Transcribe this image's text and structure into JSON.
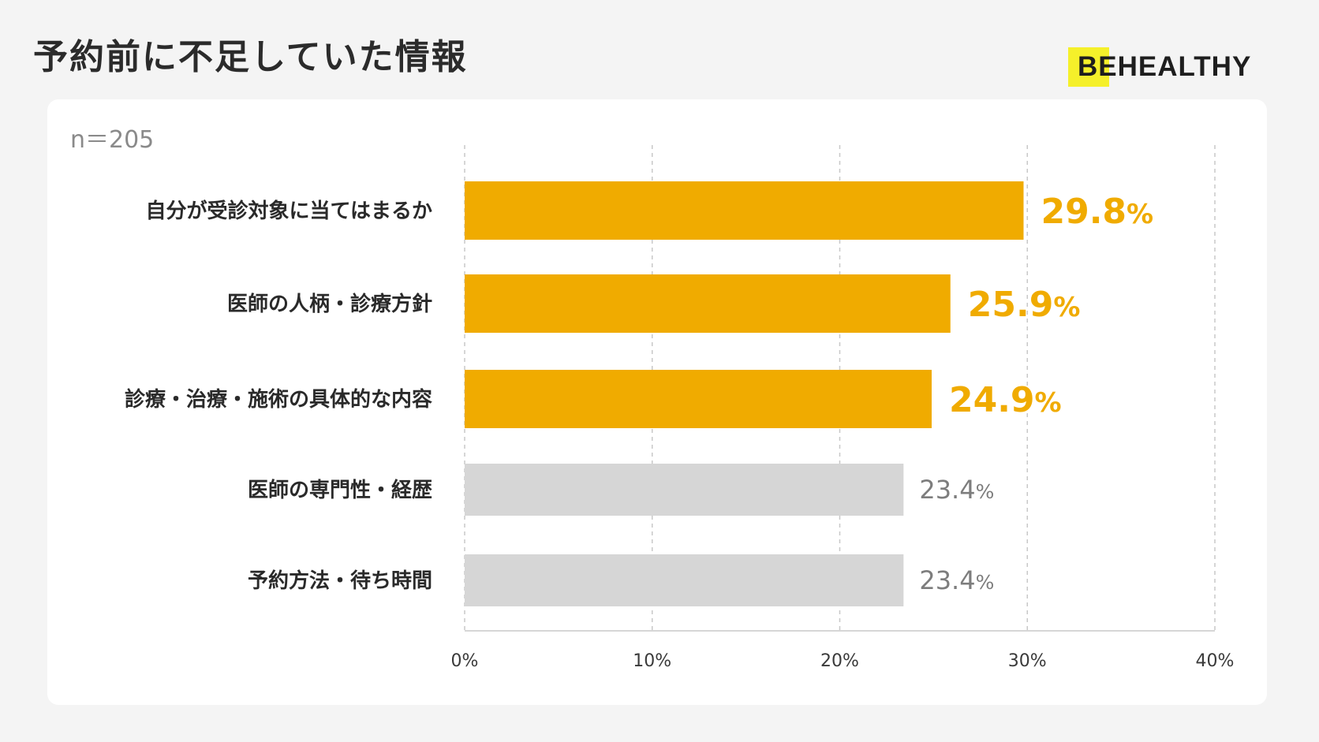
{
  "title": "予約前に不足していた情報",
  "logo": {
    "text": "BEHEALTHY"
  },
  "sample_size": "n＝205",
  "colors": {
    "highlight": "#f0ab00",
    "normal": "#d6d6d6",
    "highlight_text": "#f0ab00",
    "normal_text": "#7d7d7d",
    "grid": "#c8c8c8",
    "logo_mark": "#f5f02a"
  },
  "chart_data": {
    "type": "bar",
    "orientation": "horizontal",
    "categories": [
      "自分が受診対象に当てはまるか",
      "医師の人柄・診療方針",
      "診療・治療・施術の具体的な内容",
      "医師の専門性・経歴",
      "予約方法・待ち時間"
    ],
    "values": [
      29.8,
      25.9,
      24.9,
      23.4,
      23.4
    ],
    "value_labels": [
      "29.8",
      "25.9",
      "24.9",
      "23.4",
      "23.4"
    ],
    "value_unit": "%",
    "highlighted": [
      true,
      true,
      true,
      false,
      false
    ],
    "xlim": [
      0,
      40
    ],
    "xticks": [
      0,
      10,
      20,
      30,
      40
    ],
    "xtick_labels": [
      "0%",
      "10%",
      "20%",
      "30%",
      "40%"
    ],
    "grid": "vertical-dashed",
    "title": "",
    "xlabel": "",
    "ylabel": ""
  }
}
